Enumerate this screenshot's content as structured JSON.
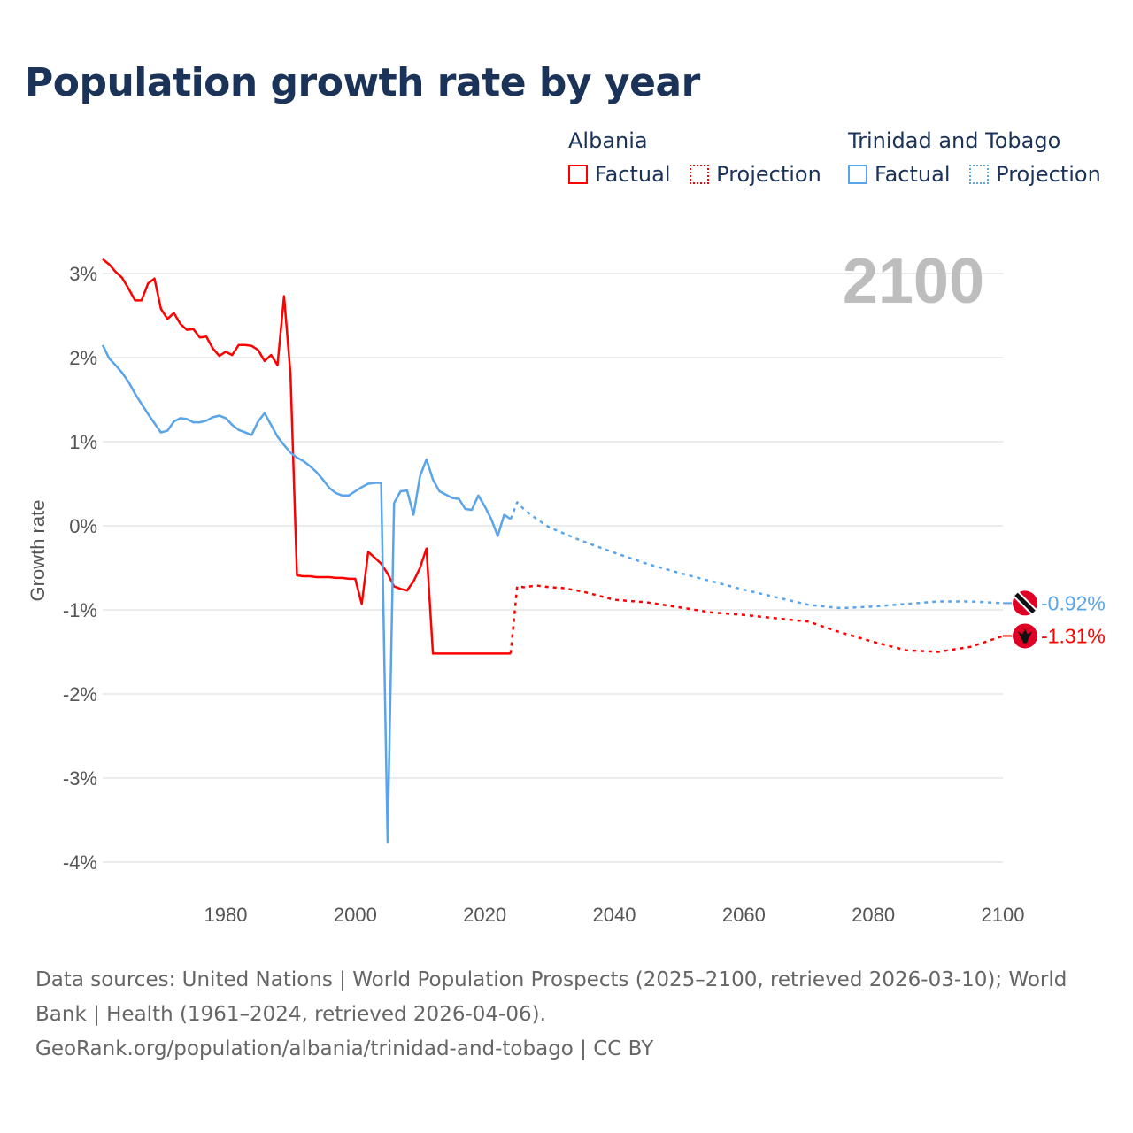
{
  "title": "Population growth rate by year",
  "legend": {
    "groups": [
      {
        "name": "Albania",
        "factual_label": "Factual",
        "projection_label": "Projection",
        "color": "#ff0000"
      },
      {
        "name": "Trinidad and Tobago",
        "factual_label": "Factual",
        "projection_label": "Projection",
        "color": "#5aa4ea"
      }
    ]
  },
  "year_label": "2100",
  "footer": {
    "sources": "Data sources: United Nations | World Population Prospects (2025–2100, retrieved 2026-03-10); World Bank | Health (1961–2024, retrieved 2026-04-06).",
    "credit": "GeoRank.org/population/albania/trinidad-and-tobago | CC BY"
  },
  "chart_data": {
    "type": "line",
    "title": "Population growth rate by year",
    "xlabel": "",
    "ylabel": "Growth rate",
    "xlim": [
      1961,
      2100
    ],
    "ylim": [
      -4.2,
      3.3
    ],
    "xticks": [
      1980,
      2000,
      2020,
      2040,
      2060,
      2080,
      2100
    ],
    "yticks": [
      3,
      2,
      1,
      0,
      -1,
      -2,
      -3,
      -4
    ],
    "ytick_labels": [
      "3%",
      "2%",
      "1%",
      "0%",
      "-1%",
      "-2%",
      "-3%",
      "-4%"
    ],
    "grid": true,
    "legend_position": "top-right",
    "series": [
      {
        "name": "Albania",
        "kind": "factual",
        "color": "#ff0000",
        "x": [
          1961,
          1962,
          1963,
          1964,
          1965,
          1966,
          1967,
          1968,
          1969,
          1970,
          1971,
          1972,
          1973,
          1974,
          1975,
          1976,
          1977,
          1978,
          1979,
          1980,
          1981,
          1982,
          1983,
          1984,
          1985,
          1986,
          1987,
          1988,
          1989,
          1990,
          1991,
          1992,
          1993,
          1994,
          1995,
          1996,
          1997,
          1998,
          1999,
          2000,
          2001,
          2002,
          2003,
          2004,
          2005,
          2006,
          2007,
          2008,
          2009,
          2010,
          2011,
          2012,
          2013,
          2014,
          2015,
          2016,
          2017,
          2018,
          2019,
          2020,
          2021,
          2022,
          2023,
          2024
        ],
        "y": [
          3.17,
          3.11,
          3.02,
          2.95,
          2.82,
          2.68,
          2.68,
          2.88,
          2.94,
          2.58,
          2.46,
          2.53,
          2.4,
          2.33,
          2.34,
          2.24,
          2.25,
          2.11,
          2.02,
          2.07,
          2.03,
          2.15,
          2.15,
          2.14,
          2.09,
          1.96,
          2.03,
          1.91,
          2.73,
          1.8,
          -0.59,
          -0.6,
          -0.6,
          -0.61,
          -0.61,
          -0.61,
          -0.62,
          -0.62,
          -0.63,
          -0.63,
          -0.93,
          -0.31,
          -0.38,
          -0.45,
          -0.57,
          -0.72,
          -0.75,
          -0.77,
          -0.66,
          -0.5,
          -0.27,
          -1.52,
          -1.52,
          -1.52,
          -1.52,
          -1.52,
          -1.52,
          -1.52,
          -1.52,
          -1.52,
          -1.52,
          -1.52,
          -1.52,
          -1.52
        ]
      },
      {
        "name": "Albania",
        "kind": "projection",
        "color": "#ff0000",
        "x": [
          2024,
          2025,
          2026,
          2028,
          2030,
          2032,
          2035,
          2038,
          2040,
          2045,
          2050,
          2055,
          2060,
          2065,
          2070,
          2075,
          2080,
          2085,
          2090,
          2095,
          2100
        ],
        "y": [
          -1.52,
          -0.72,
          -0.73,
          -0.71,
          -0.73,
          -0.74,
          -0.78,
          -0.84,
          -0.88,
          -0.91,
          -0.97,
          -1.03,
          -1.06,
          -1.1,
          -1.14,
          -1.27,
          -1.38,
          -1.48,
          -1.5,
          -1.44,
          -1.31
        ]
      },
      {
        "name": "Trinidad and Tobago",
        "kind": "factual",
        "color": "#5aa4ea",
        "x": [
          1961,
          1962,
          1963,
          1964,
          1965,
          1966,
          1967,
          1968,
          1969,
          1970,
          1971,
          1972,
          1973,
          1974,
          1975,
          1976,
          1977,
          1978,
          1979,
          1980,
          1981,
          1982,
          1983,
          1984,
          1985,
          1986,
          1987,
          1988,
          1989,
          1990,
          1991,
          1992,
          1993,
          1994,
          1995,
          1996,
          1997,
          1998,
          1999,
          2000,
          2001,
          2002,
          2003,
          2004,
          2005,
          2006,
          2007,
          2008,
          2009,
          2010,
          2011,
          2012,
          2013,
          2014,
          2015,
          2016,
          2017,
          2018,
          2019,
          2020,
          2021,
          2022,
          2023,
          2024
        ],
        "y": [
          2.15,
          1.99,
          1.91,
          1.82,
          1.71,
          1.57,
          1.45,
          1.33,
          1.22,
          1.11,
          1.13,
          1.24,
          1.28,
          1.27,
          1.23,
          1.23,
          1.25,
          1.29,
          1.31,
          1.28,
          1.2,
          1.14,
          1.11,
          1.08,
          1.24,
          1.34,
          1.2,
          1.06,
          0.96,
          0.87,
          0.81,
          0.77,
          0.71,
          0.64,
          0.55,
          0.45,
          0.39,
          0.36,
          0.36,
          0.41,
          0.46,
          0.5,
          0.51,
          0.51,
          -3.76,
          0.27,
          0.41,
          0.42,
          0.13,
          0.59,
          0.79,
          0.55,
          0.41,
          0.37,
          0.33,
          0.32,
          0.2,
          0.19,
          0.36,
          0.23,
          0.08,
          -0.12,
          0.13,
          0.08
        ]
      },
      {
        "name": "Trinidad and Tobago",
        "kind": "projection",
        "color": "#5aa4ea",
        "x": [
          2024,
          2025,
          2026,
          2028,
          2030,
          2035,
          2040,
          2045,
          2050,
          2055,
          2060,
          2065,
          2070,
          2075,
          2080,
          2085,
          2090,
          2095,
          2100
        ],
        "y": [
          0.08,
          0.28,
          0.2,
          0.08,
          -0.02,
          -0.18,
          -0.32,
          -0.45,
          -0.56,
          -0.66,
          -0.76,
          -0.85,
          -0.94,
          -0.98,
          -0.96,
          -0.93,
          -0.9,
          -0.9,
          -0.92
        ]
      }
    ],
    "end_labels": [
      {
        "series": "Trinidad and Tobago",
        "value": -0.92,
        "text": "-0.92%",
        "color": "#5aa4ea"
      },
      {
        "series": "Albania",
        "value": -1.31,
        "text": "-1.31%",
        "color": "#ff0000"
      }
    ]
  }
}
